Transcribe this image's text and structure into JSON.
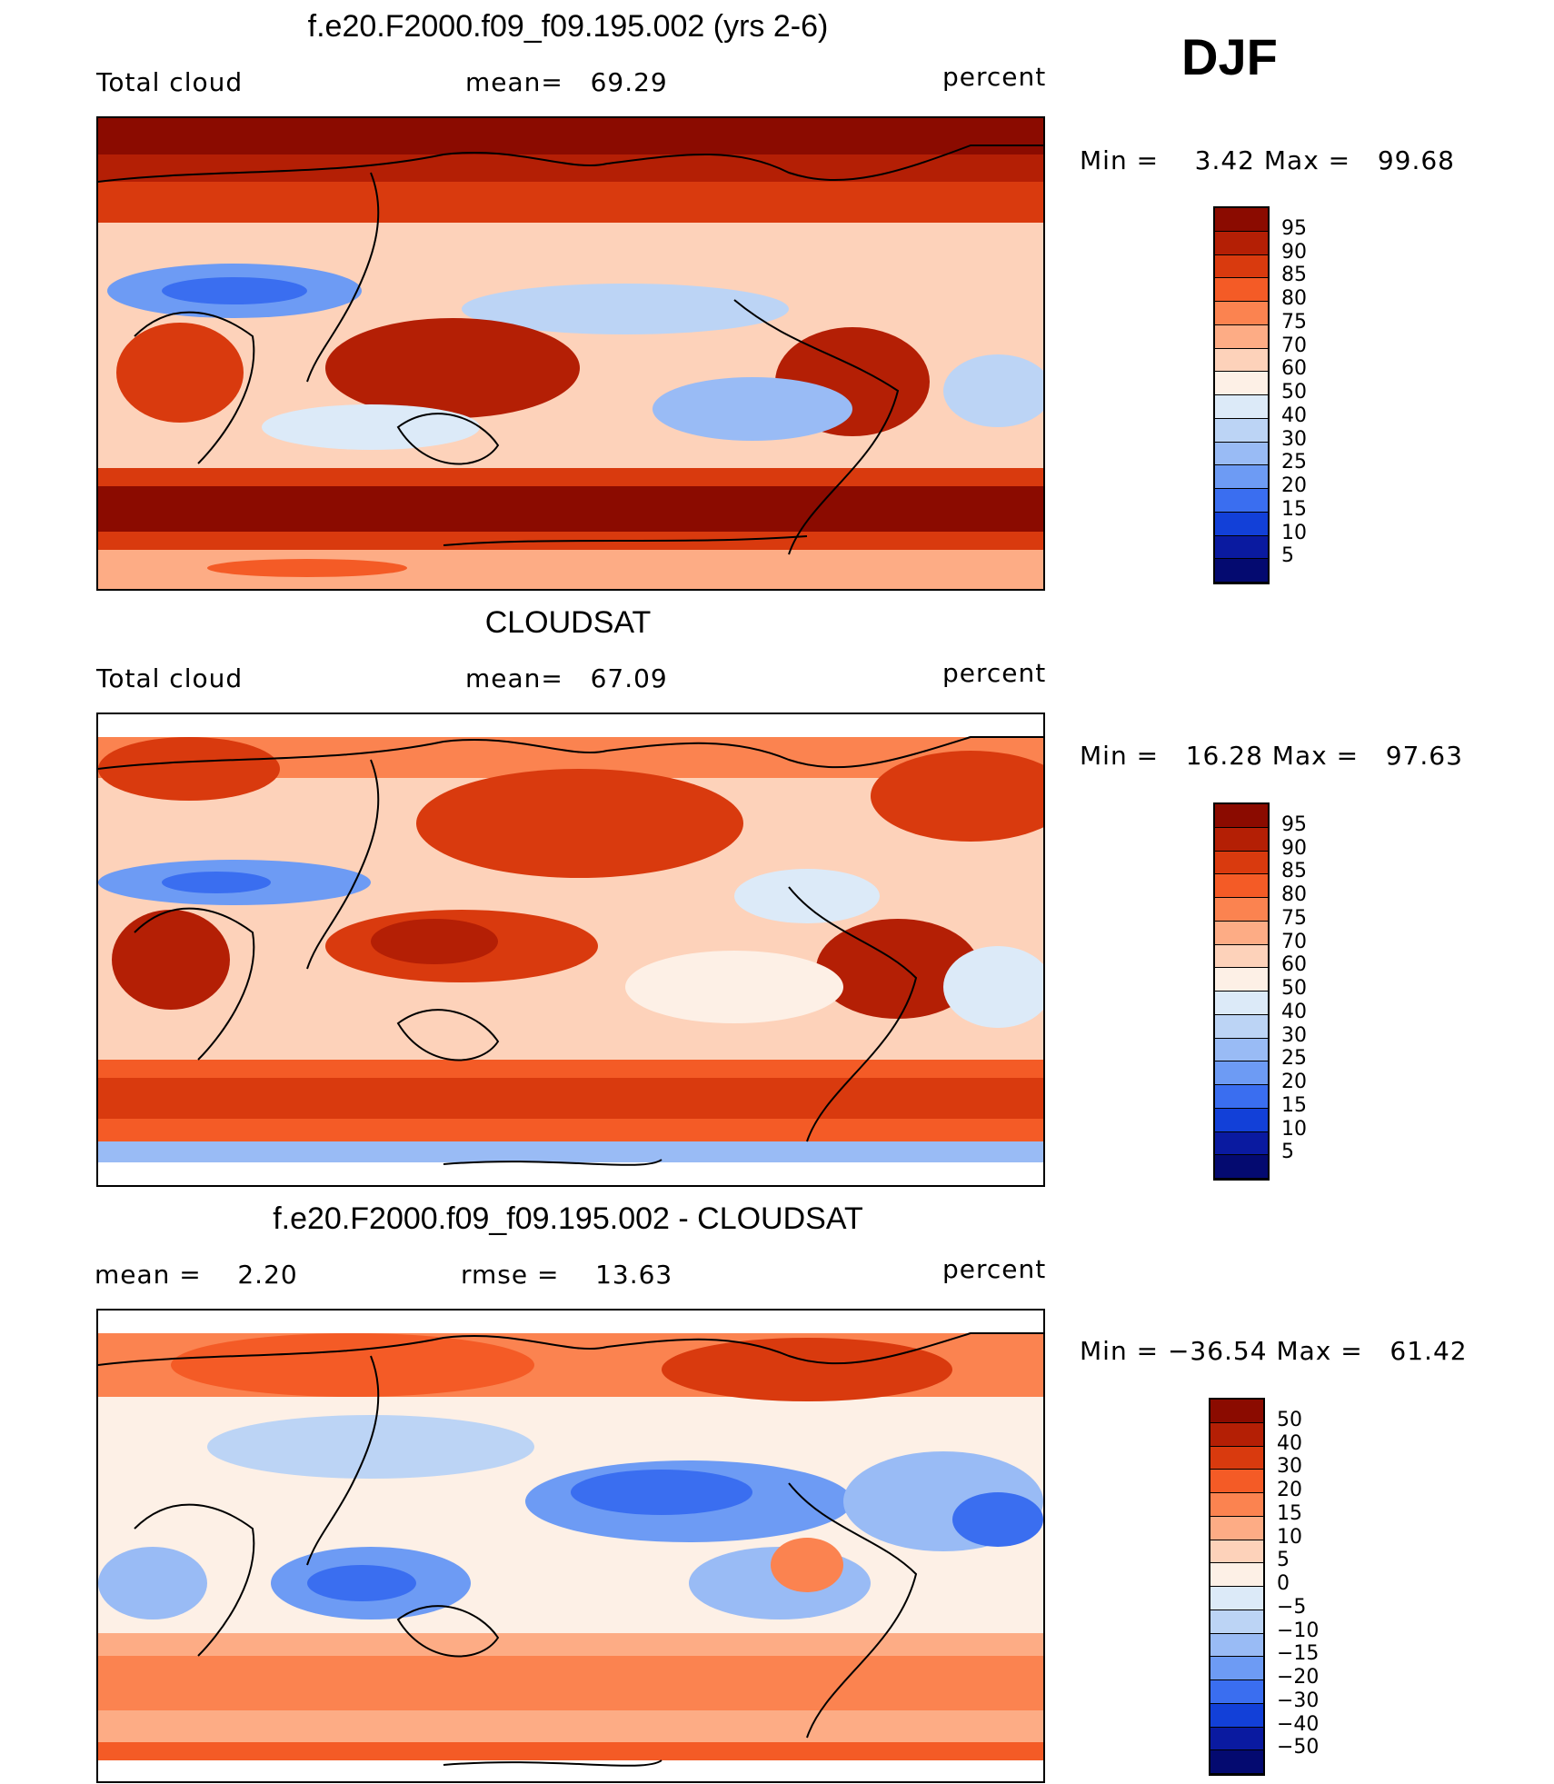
{
  "season": "DJF",
  "panels": [
    {
      "title": "f.e20.F2000.f09_f09.195.002 (yrs 2-6)",
      "left_label": "Total cloud",
      "center_label": "mean=   69.29",
      "right_label": "percent",
      "minmax": "Min =    3.42 Max =   99.68",
      "colorbar_levels": [
        "95",
        "90",
        "85",
        "80",
        "75",
        "70",
        "60",
        "50",
        "40",
        "30",
        "25",
        "20",
        "15",
        "10",
        "5"
      ],
      "colorbar_colors": [
        "#8b0b00",
        "#b41f05",
        "#d93a0e",
        "#f45b26",
        "#fb8350",
        "#fdac85",
        "#fdd2ba",
        "#fdf0e6",
        "#dceaf8",
        "#bcd4f5",
        "#99bbf5",
        "#6d9bf4",
        "#3a6ef0",
        "#1240d8",
        "#0a1aa0",
        "#040a70"
      ]
    },
    {
      "title": "CLOUDSAT",
      "left_label": "Total cloud",
      "center_label": "mean=   67.09",
      "right_label": "percent",
      "minmax": "Min =   16.28 Max =   97.63",
      "colorbar_levels": [
        "95",
        "90",
        "85",
        "80",
        "75",
        "70",
        "60",
        "50",
        "40",
        "30",
        "25",
        "20",
        "15",
        "10",
        "5"
      ],
      "colorbar_colors": [
        "#8b0b00",
        "#b41f05",
        "#d93a0e",
        "#f45b26",
        "#fb8350",
        "#fdac85",
        "#fdd2ba",
        "#fdf0e6",
        "#dceaf8",
        "#bcd4f5",
        "#99bbf5",
        "#6d9bf4",
        "#3a6ef0",
        "#1240d8",
        "#0a1aa0",
        "#040a70"
      ]
    },
    {
      "title": "f.e20.F2000.f09_f09.195.002 - CLOUDSAT",
      "left_label": "mean =    2.20",
      "center_label": "rmse =    13.63",
      "right_label": "percent",
      "minmax": "Min = −36.54 Max =   61.42",
      "colorbar_levels": [
        "50",
        "40",
        "30",
        "20",
        "15",
        "10",
        "5",
        "0",
        "−5",
        "−10",
        "−15",
        "−20",
        "−30",
        "−40",
        "−50"
      ],
      "colorbar_colors": [
        "#8b0b00",
        "#b41f05",
        "#d93a0e",
        "#f45b26",
        "#fb8350",
        "#fdac85",
        "#fdd2ba",
        "#fdf0e6",
        "#dceaf8",
        "#bcd4f5",
        "#99bbf5",
        "#6d9bf4",
        "#3a6ef0",
        "#1240d8",
        "#0a1aa0",
        "#040a70"
      ]
    }
  ]
}
